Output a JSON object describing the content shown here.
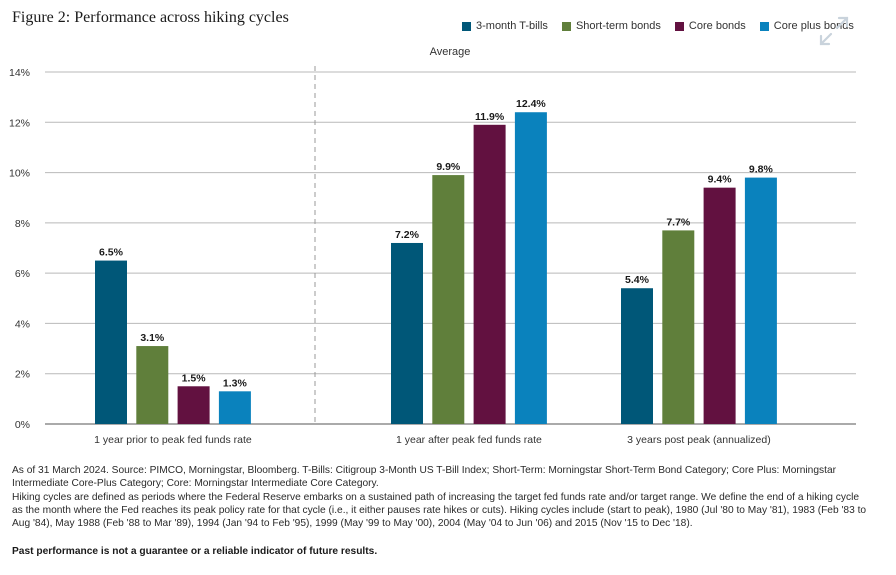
{
  "header": {
    "title": "Figure 2: Performance across hiking cycles"
  },
  "chart_data": {
    "type": "bar",
    "annotation": "Average",
    "categories": [
      "1 year prior to peak fed funds rate",
      "1 year after peak fed funds rate",
      "3 years post peak (annualized)"
    ],
    "series": [
      {
        "name": "3-month T-bills",
        "color": "#005778",
        "values": [
          6.5,
          7.2,
          5.4
        ],
        "labels": [
          "6.5%",
          "7.2%",
          "5.4%"
        ]
      },
      {
        "name": "Short-term bonds",
        "color": "#607f3b",
        "values": [
          3.1,
          9.9,
          7.7
        ],
        "labels": [
          "3.1%",
          "9.9%",
          "7.7%"
        ]
      },
      {
        "name": "Core bonds",
        "color": "#621140",
        "values": [
          1.5,
          11.9,
          9.4
        ],
        "labels": [
          "1.5%",
          "11.9%",
          "9.4%"
        ]
      },
      {
        "name": "Core plus bonds",
        "color": "#0a82bd",
        "values": [
          1.3,
          12.4,
          9.8
        ],
        "labels": [
          "1.3%",
          "12.4%",
          "9.8%"
        ]
      }
    ],
    "ylim": [
      0,
      14
    ],
    "yticks": [
      0,
      2,
      4,
      6,
      8,
      10,
      12,
      14
    ],
    "ytick_labels": [
      "0%",
      "2%",
      "4%",
      "6%",
      "8%",
      "10%",
      "12%",
      "14%"
    ],
    "grid": true,
    "legend": "top-right"
  },
  "footnotes": {
    "source": "As of 31 March 2024. Source: PIMCO, Morningstar, Bloomberg. T-Bills: Citigroup 3-Month US T-Bill Index; Short-Term: Morningstar Short-Term Bond Category; Core Plus: Morningstar Intermediate Core-Plus Category; Core: Morningstar Intermediate Core Category.",
    "definition": "Hiking cycles are defined as periods where the Federal Reserve embarks on a sustained path of increasing the target fed funds rate and/or target range. We define the end of a hiking cycle as the month where the Fed reaches its peak policy rate for that cycle (i.e., it either pauses rate hikes or cuts). Hiking cycles include (start to peak), 1980 (Jul '80 to May '81), 1983 (Feb '83 to Aug '84), May 1988 (Feb '88 to Mar '89), 1994 (Jan '94 to Feb '95), 1999 (May '99 to May '00), 2004 (May '04 to Jun '06) and 2015 (Nov '15 to Dec '18).",
    "disclaimer": "Past performance is not a guarantee or a reliable indicator of future results."
  }
}
